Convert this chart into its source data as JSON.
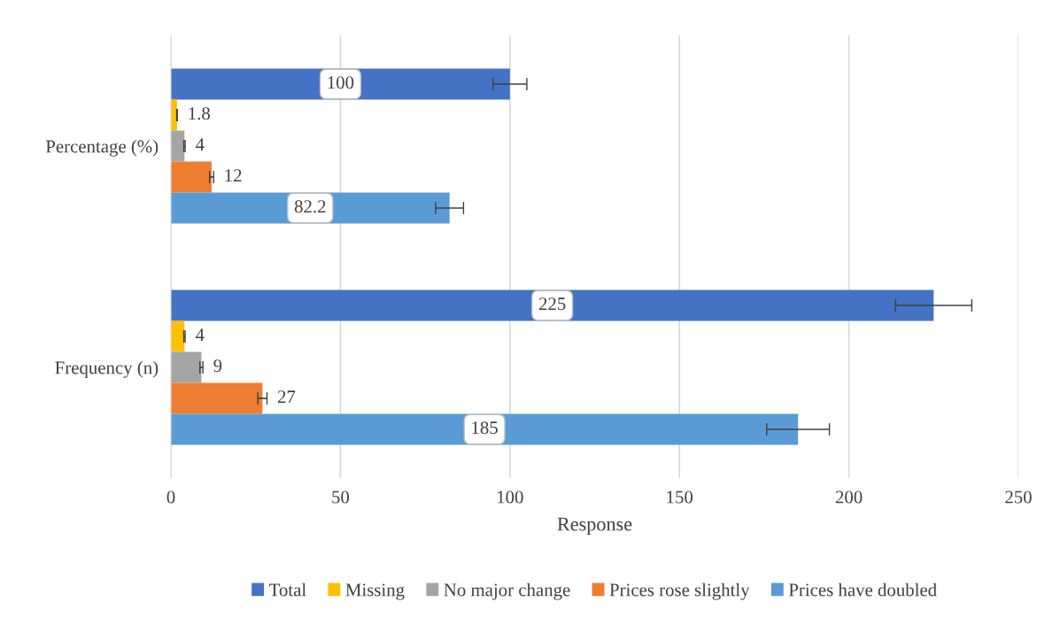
{
  "chart_data": {
    "type": "bar",
    "orientation": "horizontal",
    "xlabel": "Response",
    "categories": [
      "Percentage (%)",
      "Frequency (n)"
    ],
    "series": [
      {
        "name": "Total",
        "color": "#4472c4",
        "values": [
          100,
          225
        ],
        "errors": [
          5,
          11.25
        ]
      },
      {
        "name": "Missing",
        "color": "#ffc000",
        "values": [
          1.8,
          4
        ],
        "errors": [
          0.09,
          0.2
        ]
      },
      {
        "name": "No major change",
        "color": "#a5a5a5",
        "values": [
          4,
          9
        ],
        "errors": [
          0.2,
          0.45
        ]
      },
      {
        "name": "Prices rose slightly",
        "color": "#ed7d31",
        "values": [
          12,
          27
        ],
        "errors": [
          0.6,
          1.35
        ]
      },
      {
        "name": "Prices have doubled",
        "color": "#5b9bd5",
        "values": [
          82.2,
          185
        ],
        "errors": [
          4.11,
          9.25
        ]
      }
    ],
    "xlim": [
      0,
      250
    ],
    "xticks": [
      0,
      50,
      100,
      150,
      200,
      250
    ],
    "grid": "x",
    "legend": "bottom",
    "data_labels": true
  }
}
